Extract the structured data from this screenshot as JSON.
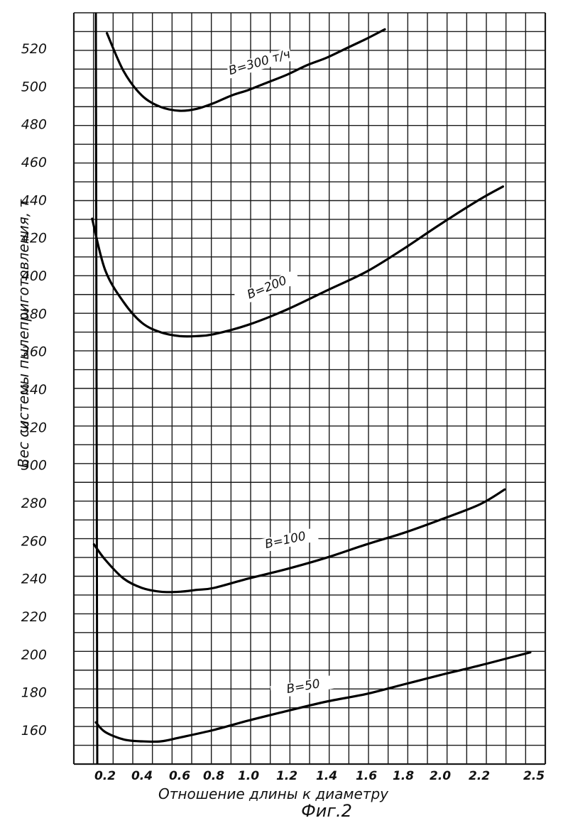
{
  "chart_data": {
    "type": "line",
    "caption": "Фиг.2",
    "xlabel": "Отношение длины к диаметру",
    "ylabel": "Вес системы пылеприготовления, т",
    "xlim": [
      0.1,
      2.5
    ],
    "ylim": [
      145,
      528
    ],
    "grid": true,
    "x_ticks": [
      "0.2",
      "0.4",
      "0.6",
      "0.8",
      "1.0",
      "1.2",
      "1.4",
      "1.6",
      "1.8",
      "2.0",
      "2.2",
      "2.5"
    ],
    "y_ticks": [
      "160",
      "180",
      "200",
      "220",
      "240",
      "260",
      "280",
      "300",
      "320",
      "340",
      "360",
      "380",
      "400",
      "420",
      "440",
      "460",
      "480",
      "500",
      "520"
    ],
    "series": [
      {
        "name": "B=300 т/ч",
        "x": [
          0.21,
          0.3,
          0.4,
          0.5,
          0.6,
          0.7,
          0.8,
          0.9,
          1.0,
          1.1,
          1.2,
          1.3,
          1.4,
          1.5,
          1.6,
          1.7
        ],
        "y": [
          528,
          508,
          495,
          489,
          487,
          488,
          491,
          495,
          498,
          502,
          506,
          511,
          515,
          520,
          525,
          530
        ]
      },
      {
        "name": "B=200",
        "x": [
          0.13,
          0.2,
          0.3,
          0.4,
          0.5,
          0.6,
          0.7,
          0.8,
          1.0,
          1.2,
          1.4,
          1.6,
          1.8,
          2.0,
          2.2,
          2.33
        ],
        "y": [
          430,
          403,
          386,
          375,
          370,
          368,
          368,
          369,
          374,
          382,
          392,
          402,
          414,
          427,
          440,
          447
        ]
      },
      {
        "name": "B=100",
        "x": [
          0.14,
          0.2,
          0.3,
          0.4,
          0.5,
          0.6,
          0.7,
          0.8,
          1.0,
          1.2,
          1.4,
          1.6,
          1.8,
          2.0,
          2.2,
          2.34
        ],
        "y": [
          258,
          250,
          240,
          235,
          233,
          233,
          234,
          235,
          240,
          245,
          251,
          258,
          264,
          271,
          279,
          287
        ]
      },
      {
        "name": "B=50",
        "x": [
          0.15,
          0.2,
          0.3,
          0.4,
          0.5,
          0.6,
          0.8,
          1.0,
          1.2,
          1.4,
          1.6,
          1.8,
          2.0,
          2.2,
          2.4,
          2.48
        ],
        "y": [
          164,
          159,
          155,
          154,
          154,
          156,
          160,
          165,
          170,
          175,
          179,
          184,
          189,
          194,
          199,
          201
        ]
      }
    ]
  }
}
